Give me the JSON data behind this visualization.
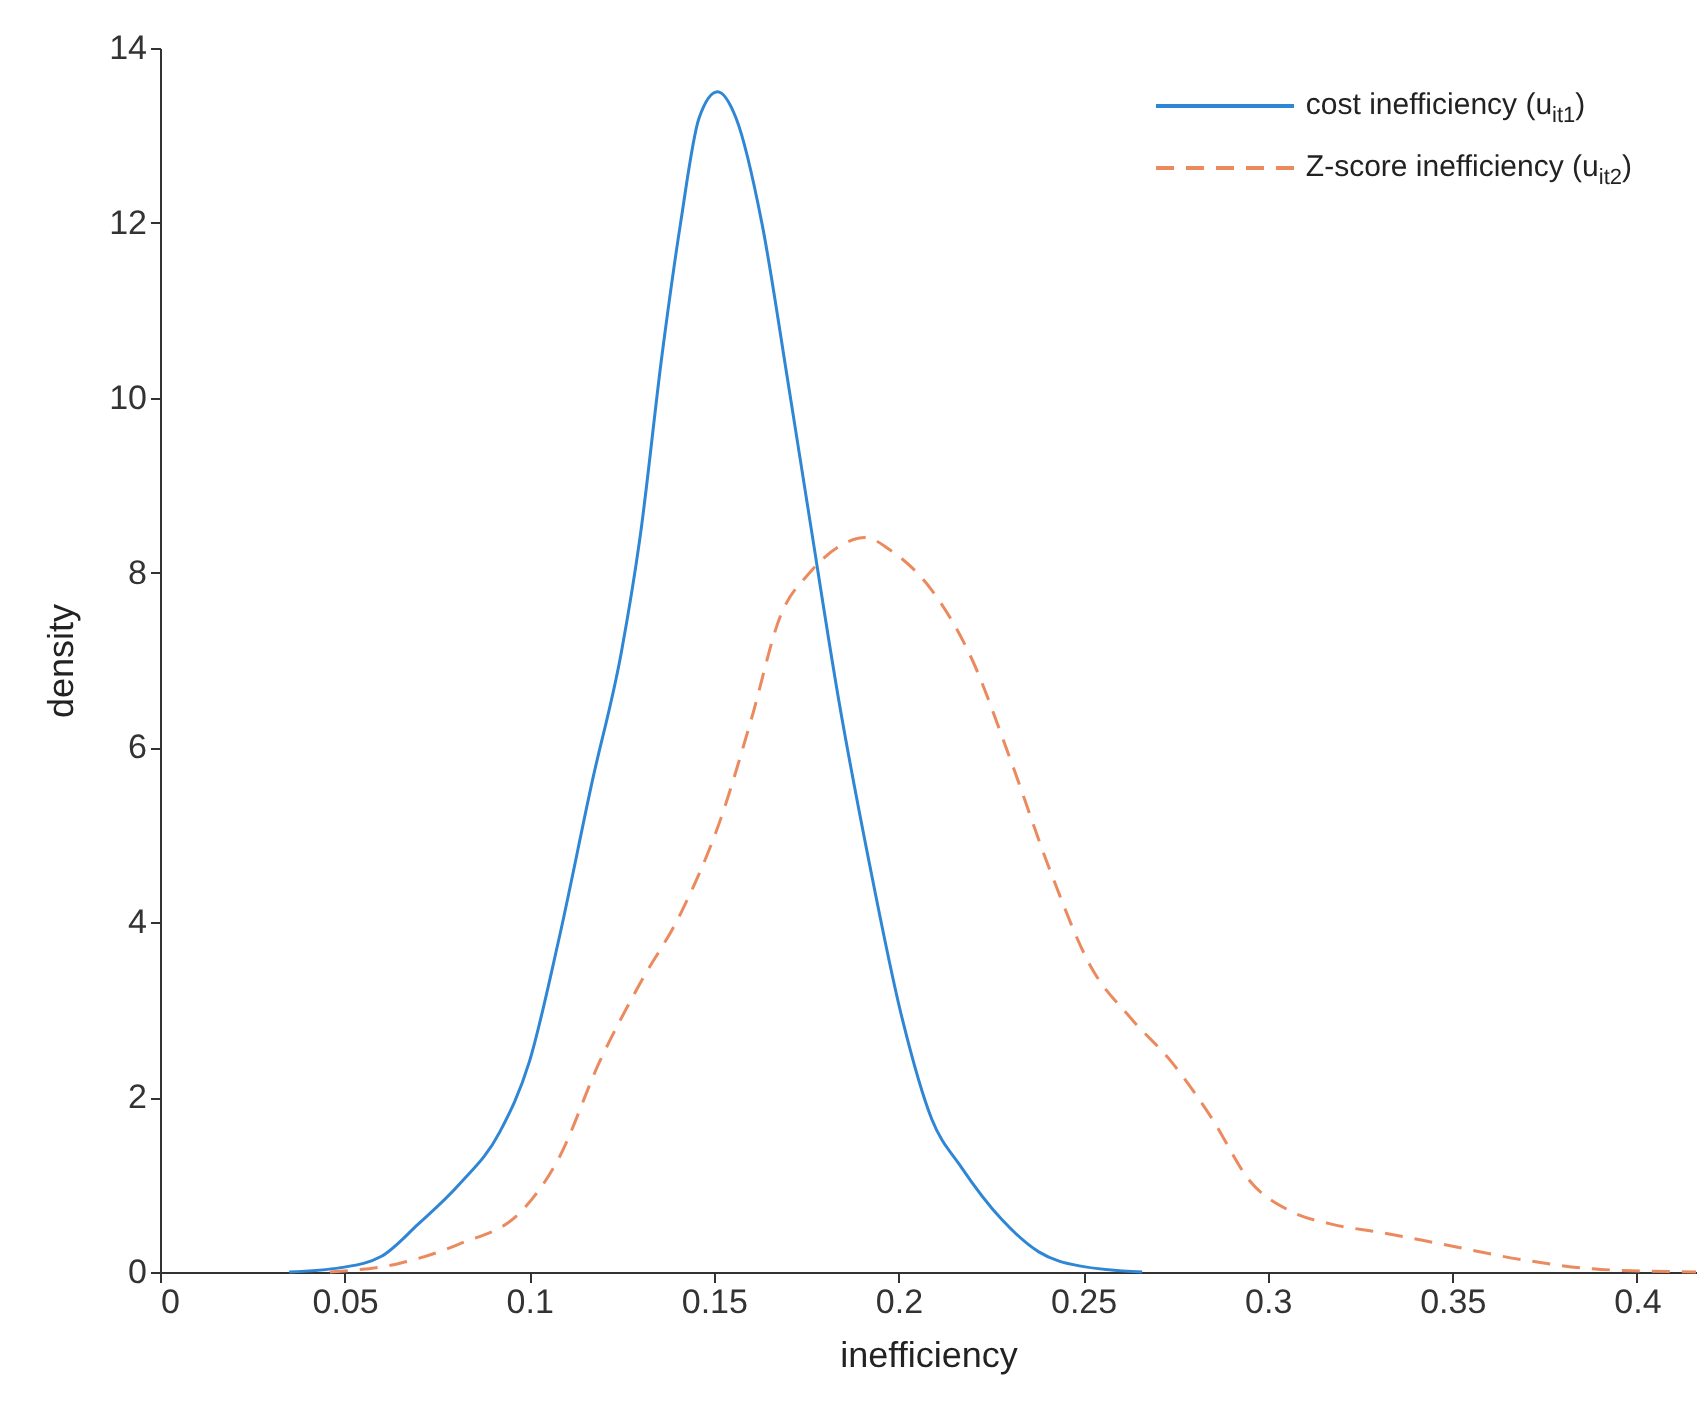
{
  "chart_data": {
    "type": "line",
    "xlabel": "inefficiency",
    "ylabel": "density",
    "xlim": [
      0,
      0.416
    ],
    "ylim": [
      0,
      14
    ],
    "xticks": [
      0,
      0.05,
      0.1,
      0.15,
      0.2,
      0.25,
      0.3,
      0.35,
      0.4
    ],
    "yticks": [
      0,
      2,
      4,
      6,
      8,
      10,
      12,
      14
    ],
    "grid": false,
    "legend": "top right",
    "marker": "none",
    "series": [
      {
        "name": "cost inefficiency (u$_{it1}$)",
        "color": "#2e86d4",
        "line_style": "solid",
        "x": [
          0.035,
          0.049,
          0.06,
          0.07,
          0.081,
          0.092,
          0.1,
          0.108,
          0.117,
          0.125,
          0.13,
          0.136,
          0.141,
          0.146,
          0.151,
          0.156,
          0.163,
          0.17,
          0.176,
          0.184,
          0.192,
          0.201,
          0.209,
          0.217,
          0.228,
          0.238,
          0.249,
          0.266
        ],
        "values": [
          0,
          0.05,
          0.18,
          0.55,
          1.0,
          1.6,
          2.4,
          3.8,
          5.6,
          7.1,
          8.4,
          10.5,
          12.0,
          13.2,
          13.5,
          13.2,
          12.0,
          10.2,
          8.6,
          6.5,
          4.7,
          2.9,
          1.75,
          1.2,
          0.6,
          0.23,
          0.07,
          0
        ]
      },
      {
        "name": "Z-score inefficiency (u$_{it2}$)",
        "color": "#eb8a5e",
        "line_style": "dashed",
        "x": [
          0.046,
          0.065,
          0.081,
          0.098,
          0.108,
          0.119,
          0.13,
          0.141,
          0.152,
          0.16,
          0.168,
          0.176,
          0.184,
          0.191,
          0.198,
          0.209,
          0.22,
          0.23,
          0.241,
          0.252,
          0.263,
          0.274,
          0.285,
          0.295,
          0.306,
          0.317,
          0.331,
          0.347,
          0.369,
          0.39,
          0.416
        ],
        "values": [
          0,
          0.1,
          0.32,
          0.7,
          1.3,
          2.4,
          3.3,
          4.1,
          5.2,
          6.3,
          7.5,
          8.0,
          8.3,
          8.4,
          8.25,
          7.8,
          7.0,
          5.9,
          4.6,
          3.5,
          2.9,
          2.4,
          1.75,
          1.05,
          0.7,
          0.55,
          0.45,
          0.32,
          0.14,
          0.03,
          0
        ]
      }
    ]
  }
}
